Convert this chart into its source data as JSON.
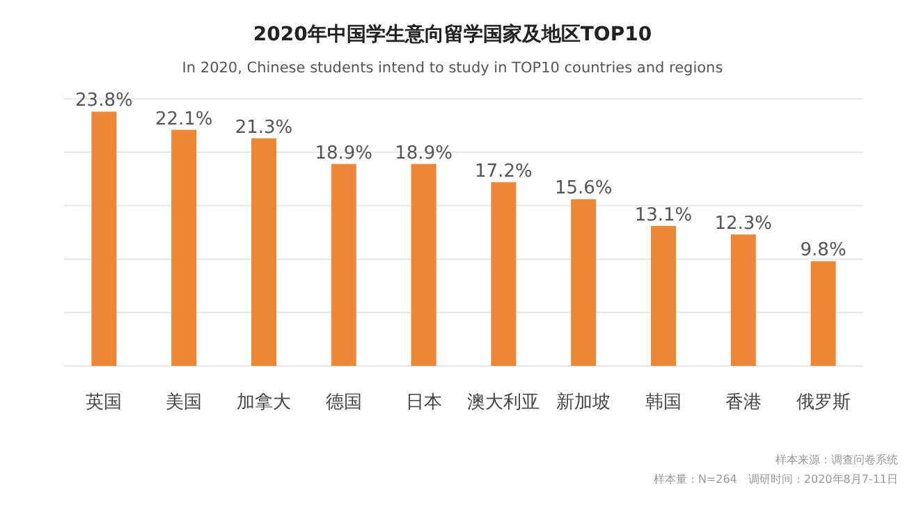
{
  "chart_data": {
    "type": "bar",
    "title": "2020年中国学生意向留学国家及地区TOP10",
    "subtitle": "In 2020, Chinese students intend to study in TOP10 countries and regions",
    "categories": [
      "英国",
      "美国",
      "加拿大",
      "德国",
      "日本",
      "澳大利亚",
      "新加坡",
      "韩国",
      "香港",
      "俄罗斯"
    ],
    "values": [
      23.8,
      22.1,
      21.3,
      18.9,
      18.9,
      17.2,
      15.6,
      13.1,
      12.3,
      9.8
    ],
    "value_labels": [
      "23.8%",
      "22.1%",
      "21.3%",
      "18.9%",
      "18.9%",
      "17.2%",
      "15.6%",
      "13.1%",
      "12.3%",
      "9.8%"
    ],
    "color": "#ed8636",
    "ylim": [
      0,
      25
    ],
    "yticks": [
      {
        "value": 0,
        "label": null
      },
      {
        "value": 5,
        "label": null
      },
      {
        "value": 10,
        "label": null
      },
      {
        "value": 15,
        "label": null
      },
      {
        "value": 20,
        "label": null
      },
      {
        "value": 25,
        "label": null
      }
    ],
    "grid": "y",
    "tick_labels": "x",
    "annotations": [
      "样本来源：调查问卷系统",
      "样本量：N=264　调研时间：2020年8月7-11日"
    ]
  }
}
